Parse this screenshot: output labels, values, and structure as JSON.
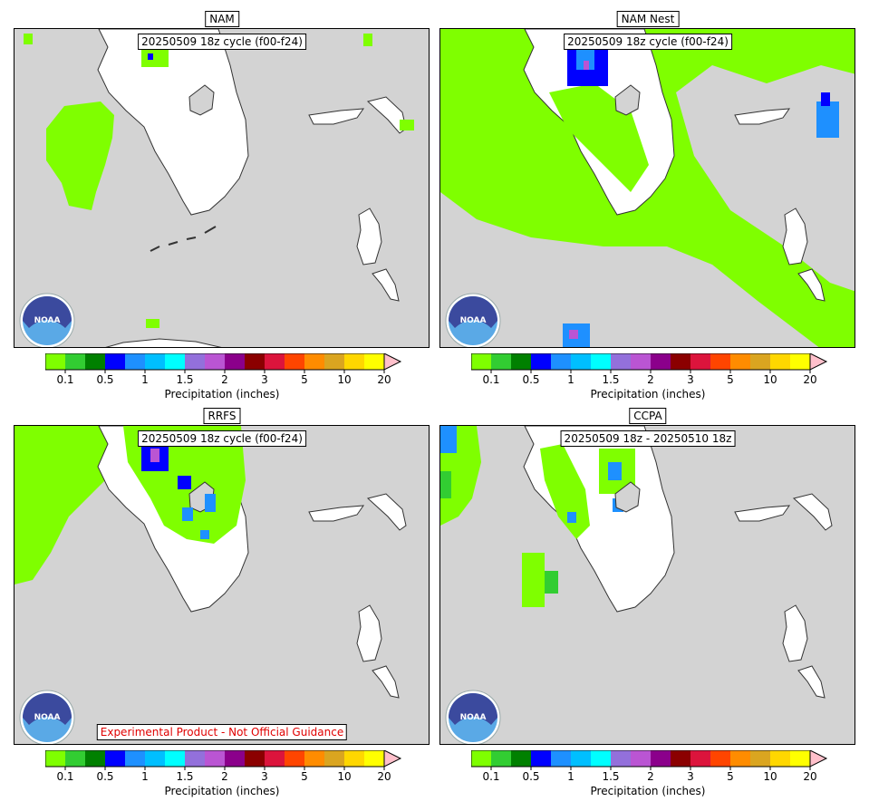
{
  "panels": [
    {
      "title": "NAM",
      "cycle": "20250509 18z cycle (f00-f24)",
      "experimental": ""
    },
    {
      "title": "NAM Nest",
      "cycle": "20250509 18z cycle (f00-f24)",
      "experimental": ""
    },
    {
      "title": "RRFS",
      "cycle": "20250509 18z cycle (f00-f24)",
      "experimental": "Experimental Product - Not Official Guidance"
    },
    {
      "title": "CCPA",
      "cycle": "20250509 18z - 20250510 18z",
      "experimental": ""
    }
  ],
  "colorbar": {
    "label": "Precipitation (inches)",
    "ticks": [
      "0.1",
      "0.5",
      "1",
      "1.5",
      "2",
      "3",
      "5",
      "10",
      "20"
    ],
    "colors": [
      "#7fff00",
      "#32cd32",
      "#008000",
      "#0000ff",
      "#1e90ff",
      "#00bfff",
      "#00ffff",
      "#9370db",
      "#ba55d3",
      "#8b008b",
      "#8b0000",
      "#dc143c",
      "#ff4500",
      "#ff8c00",
      "#daa520",
      "#ffd700",
      "#ffff00"
    ],
    "extend_color": "#ffc0cb"
  },
  "logo": {
    "text": "NOAA",
    "icon": "noaa-logo-icon"
  }
}
